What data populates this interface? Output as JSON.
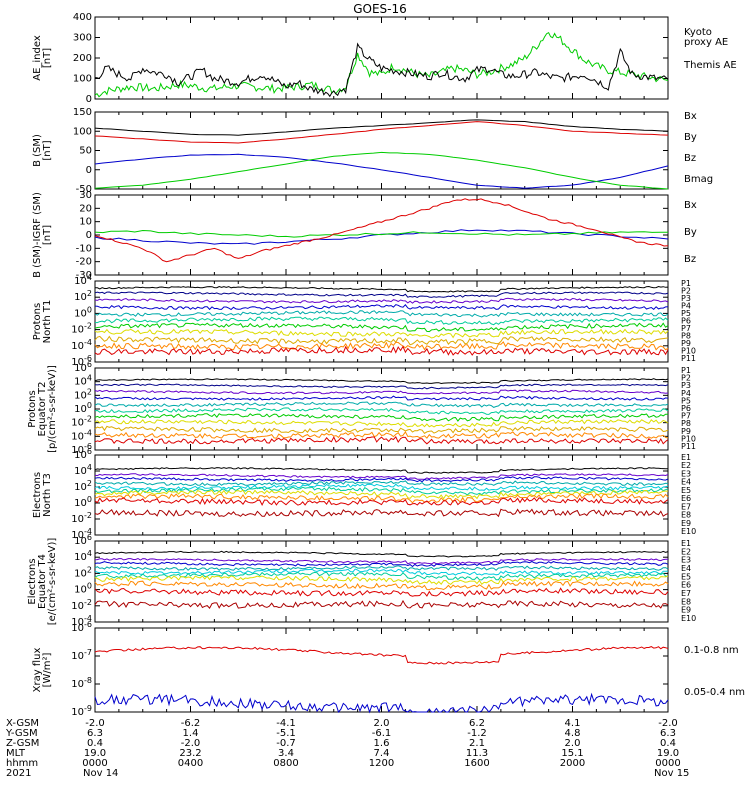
{
  "title": "GOES-16",
  "colors": {
    "black": "#000000",
    "red": "#dd0000",
    "green": "#00cc00",
    "blue": "#0000cc",
    "navy": "#000088",
    "purple": "#6600cc",
    "teal": "#00aaaa",
    "cyan": "#00ccdd",
    "sea": "#00cc99",
    "yellow": "#dddd00",
    "gold": "#ddaa00",
    "orange": "#ff8800",
    "darkred": "#aa0000"
  },
  "chart_data": [
    {
      "type": "line",
      "id": "ae",
      "ylabel": [
        "AE_index",
        "[nT]"
      ],
      "ylim": [
        0,
        400
      ],
      "yticks": [
        "0",
        "100",
        "200",
        "300",
        "400"
      ],
      "series": [
        {
          "name": "Kyoto proxy AE",
          "label_lines": [
            "Kyoto",
            "proxy AE"
          ],
          "color": "#00cc00",
          "x": [
            0,
            0.5,
            1,
            1.5,
            2,
            2.5,
            3,
            3.5,
            4,
            4.5,
            5,
            5.5,
            6,
            6.5,
            7,
            7.5,
            8,
            8.5,
            9,
            9.5,
            10,
            10.5,
            11,
            11.5,
            12,
            12.5,
            13,
            13.5,
            14,
            14.5,
            15,
            15.5,
            16,
            16.5,
            17,
            17.5,
            18,
            18.5,
            19,
            19.5,
            20,
            20.5,
            21,
            21.5,
            22,
            22.5,
            23,
            23.5,
            24
          ],
          "y": [
            20,
            40,
            50,
            60,
            55,
            50,
            60,
            70,
            65,
            55,
            50,
            60,
            65,
            60,
            55,
            50,
            55,
            60,
            70,
            60,
            40,
            60,
            220,
            130,
            120,
            160,
            140,
            120,
            110,
            130,
            150,
            140,
            120,
            130,
            150,
            170,
            200,
            260,
            330,
            290,
            240,
            190,
            160,
            140,
            130,
            120,
            110,
            100,
            90
          ]
        },
        {
          "name": "Themis AE",
          "label_lines": [
            "Themis AE"
          ],
          "color": "#000000",
          "x": [
            0,
            0.5,
            1,
            1.5,
            2,
            2.5,
            3,
            3.5,
            4,
            4.5,
            5,
            5.5,
            6,
            6.5,
            7,
            7.5,
            8,
            8.5,
            9,
            9.5,
            10,
            10.5,
            11,
            11.5,
            12,
            12.5,
            13,
            13.5,
            14,
            14.5,
            15,
            15.5,
            16,
            16.5,
            17,
            17.5,
            18,
            18.5,
            19,
            19.5,
            20,
            20.5,
            21,
            21.5,
            22,
            22.5,
            23,
            23.5,
            24
          ],
          "y": [
            100,
            150,
            120,
            100,
            150,
            130,
            120,
            80,
            110,
            140,
            100,
            90,
            80,
            100,
            120,
            90,
            60,
            80,
            50,
            40,
            30,
            50,
            250,
            190,
            150,
            140,
            130,
            120,
            110,
            130,
            110,
            100,
            140,
            150,
            120,
            110,
            120,
            130,
            110,
            100,
            110,
            120,
            90,
            60,
            230,
            120,
            110,
            100,
            95
          ]
        }
      ]
    },
    {
      "type": "line",
      "id": "bsm",
      "ylabel": [
        "B (SM)",
        "[nT]"
      ],
      "ylim": [
        -50,
        150
      ],
      "yticks": [
        "-50",
        "0",
        "50",
        "100",
        "150"
      ],
      "series": [
        {
          "name": "Bx",
          "color": "#0000cc",
          "x": [
            0,
            2,
            4,
            6,
            8,
            10,
            12,
            14,
            16,
            18,
            20,
            22,
            24
          ],
          "y": [
            15,
            28,
            38,
            40,
            32,
            18,
            0,
            -20,
            -40,
            -48,
            -40,
            -20,
            10
          ]
        },
        {
          "name": "By",
          "color": "#00cc00",
          "x": [
            0,
            2,
            4,
            6,
            8,
            10,
            12,
            14,
            16,
            18,
            20,
            22,
            24
          ],
          "y": [
            -48,
            -40,
            -25,
            -5,
            15,
            35,
            45,
            40,
            25,
            5,
            -20,
            -40,
            -50
          ]
        },
        {
          "name": "Bz",
          "color": "#dd0000",
          "x": [
            0,
            2,
            4,
            6,
            8,
            10,
            12,
            14,
            16,
            18,
            20,
            22,
            24
          ],
          "y": [
            88,
            80,
            72,
            70,
            80,
            92,
            105,
            115,
            125,
            115,
            100,
            95,
            90
          ]
        },
        {
          "name": "Bmag",
          "color": "#000000",
          "x": [
            0,
            2,
            4,
            6,
            8,
            10,
            12,
            14,
            16,
            18,
            20,
            22,
            24
          ],
          "y": [
            108,
            100,
            92,
            90,
            98,
            108,
            115,
            122,
            130,
            125,
            112,
            105,
            100
          ]
        }
      ]
    },
    {
      "type": "line",
      "id": "bigrf",
      "ylabel": [
        "B (SM)-IGRF (SM)",
        "[nT]"
      ],
      "ylim": [
        -30,
        30
      ],
      "yticks": [
        "-30",
        "-20",
        "-10",
        "0",
        "10",
        "20",
        "30"
      ],
      "series": [
        {
          "name": "Bx",
          "color": "#0000cc",
          "x": [
            0,
            2,
            4,
            6,
            8,
            10,
            12,
            14,
            16,
            18,
            20,
            22,
            24
          ],
          "y": [
            -2,
            -4,
            -6,
            -7,
            -5,
            -3,
            0,
            2,
            4,
            3,
            1,
            -1,
            -3
          ]
        },
        {
          "name": "By",
          "color": "#00cc00",
          "x": [
            0,
            2,
            4,
            6,
            8,
            10,
            12,
            14,
            16,
            18,
            20,
            22,
            24
          ],
          "y": [
            2,
            3,
            1,
            0,
            -1,
            0,
            1,
            2,
            1,
            0,
            1,
            2,
            2
          ]
        },
        {
          "name": "Bz",
          "color": "#dd0000",
          "x": [
            0,
            1,
            2,
            3,
            4,
            5,
            6,
            7,
            8,
            9,
            10,
            11,
            12,
            13,
            14,
            15,
            16,
            17,
            18,
            19,
            20,
            21,
            22,
            23,
            24
          ],
          "y": [
            0,
            -5,
            -10,
            -20,
            -15,
            -10,
            -18,
            -12,
            -8,
            -4,
            0,
            5,
            10,
            15,
            20,
            26,
            27,
            24,
            18,
            12,
            8,
            4,
            -2,
            -6,
            -8
          ]
        }
      ]
    },
    {
      "type": "line",
      "id": "protons_t1",
      "yscale": "log",
      "ylabel": [
        "Protons",
        "North T1"
      ],
      "ylim": [
        -6,
        4
      ],
      "yticks": [
        "10-6",
        "10-4",
        "10-2",
        "100",
        "102",
        "104"
      ],
      "channel_x": [
        0,
        1,
        2,
        3,
        4,
        5,
        6,
        7,
        8,
        9,
        10,
        11,
        12,
        13,
        14,
        15,
        16,
        17,
        18,
        19,
        20,
        21,
        22,
        23,
        24
      ],
      "series": [
        {
          "name": "P1",
          "color": "#000000",
          "base": 3.1
        },
        {
          "name": "P2",
          "color": "#000088",
          "base": 2.4
        },
        {
          "name": "P3",
          "color": "#6600cc",
          "base": 1.6
        },
        {
          "name": "P4",
          "color": "#0000cc",
          "base": 0.8
        },
        {
          "name": "P5",
          "color": "#00aaaa",
          "base": 0.0
        },
        {
          "name": "P6",
          "color": "#00cc99",
          "base": -0.8
        },
        {
          "name": "P7",
          "color": "#00cc00",
          "base": -1.6
        },
        {
          "name": "P8",
          "color": "#dddd00",
          "base": -2.4
        },
        {
          "name": "P9",
          "color": "#ddaa00",
          "base": -3.3
        },
        {
          "name": "P10",
          "color": "#ff8800",
          "base": -4.0
        },
        {
          "name": "P11",
          "color": "#dd0000",
          "base": -4.6
        }
      ]
    },
    {
      "type": "line",
      "id": "protons_t2",
      "yscale": "log",
      "ylabel": [
        "Protons",
        "Equator T2",
        "[p/(cm²-s-sr-keV)]"
      ],
      "ylim": [
        -6,
        6
      ],
      "yticks": [
        "10-6",
        "10-4",
        "10-2",
        "100",
        "102",
        "104",
        "106"
      ],
      "series": [
        {
          "name": "P1",
          "color": "#000000",
          "base": 4.2
        },
        {
          "name": "P2",
          "color": "#000088",
          "base": 3.4
        },
        {
          "name": "P3",
          "color": "#6600cc",
          "base": 2.5
        },
        {
          "name": "P4",
          "color": "#0000cc",
          "base": 1.6
        },
        {
          "name": "P5",
          "color": "#00aaaa",
          "base": 0.7
        },
        {
          "name": "P6",
          "color": "#00cc99",
          "base": -0.2
        },
        {
          "name": "P7",
          "color": "#00cc00",
          "base": -1.1
        },
        {
          "name": "P8",
          "color": "#dddd00",
          "base": -2.0
        },
        {
          "name": "P9",
          "color": "#ddaa00",
          "base": -3.0
        },
        {
          "name": "P10",
          "color": "#ff8800",
          "base": -3.8
        },
        {
          "name": "P11",
          "color": "#dd0000",
          "base": -4.6
        }
      ]
    },
    {
      "type": "line",
      "id": "electrons_t3",
      "yscale": "log",
      "ylabel": [
        "Electrons",
        "North T3"
      ],
      "ylim": [
        -4,
        6
      ],
      "yticks": [
        "10-4",
        "10-2",
        "100",
        "102",
        "104",
        "106"
      ],
      "series": [
        {
          "name": "E1",
          "color": "#000000",
          "base": 4.2
        },
        {
          "name": "E2",
          "color": "#6600cc",
          "base": 3.4
        },
        {
          "name": "E3",
          "color": "#0000cc",
          "base": 3.0
        },
        {
          "name": "E4",
          "color": "#00aaaa",
          "base": 2.5
        },
        {
          "name": "E5",
          "color": "#00ccdd",
          "base": 2.0
        },
        {
          "name": "E6",
          "color": "#00cc99",
          "base": 1.6
        },
        {
          "name": "E7",
          "color": "#dddd00",
          "base": 1.2
        },
        {
          "name": "E8",
          "color": "#ff8800",
          "base": 0.7
        },
        {
          "name": "E9",
          "color": "#dd0000",
          "base": 0.2
        },
        {
          "name": "E10",
          "color": "#aa0000",
          "base": -1.2
        }
      ]
    },
    {
      "type": "line",
      "id": "electrons_t4",
      "yscale": "log",
      "ylabel": [
        "Electrons",
        "Equator T4",
        "[e/(cm²-s-sr-keV)]"
      ],
      "ylim": [
        -4,
        6
      ],
      "yticks": [
        "10-4",
        "10-2",
        "100",
        "102",
        "104",
        "106"
      ],
      "series": [
        {
          "name": "E1",
          "color": "#000000",
          "base": 4.5
        },
        {
          "name": "E2",
          "color": "#6600cc",
          "base": 3.6
        },
        {
          "name": "E3",
          "color": "#0000cc",
          "base": 3.2
        },
        {
          "name": "E4",
          "color": "#00aaaa",
          "base": 2.7
        },
        {
          "name": "E5",
          "color": "#00ccdd",
          "base": 2.2
        },
        {
          "name": "E6",
          "color": "#00cc99",
          "base": 1.8
        },
        {
          "name": "E7",
          "color": "#dddd00",
          "base": 1.3
        },
        {
          "name": "E8",
          "color": "#ff8800",
          "base": 0.6
        },
        {
          "name": "E9",
          "color": "#dd0000",
          "base": -0.3
        },
        {
          "name": "E10",
          "color": "#aa0000",
          "base": -1.8
        }
      ]
    },
    {
      "type": "line",
      "id": "xray",
      "yscale": "log",
      "ylabel": [
        "Xray flux",
        "[W/m²]"
      ],
      "ylim": [
        -9,
        -6
      ],
      "yticks": [
        "10-9",
        "10-8",
        "10-7",
        "10-6"
      ],
      "series": [
        {
          "name": "0.1-0.8 nm",
          "color": "#dd0000",
          "base": -6.85
        },
        {
          "name": "0.05-0.4 nm",
          "color": "#0000cc",
          "base": -8.7
        }
      ]
    }
  ],
  "xaxis": {
    "rows": [
      {
        "label": "X-GSM",
        "values": [
          "-2.0",
          "-6.2",
          "-4.1",
          "2.0",
          "6.2",
          "4.1",
          "-2.0"
        ]
      },
      {
        "label": "Y-GSM",
        "values": [
          "6.3",
          "1.4",
          "-5.1",
          "-6.1",
          "-1.2",
          "4.8",
          "6.3"
        ]
      },
      {
        "label": "Z-GSM",
        "values": [
          "0.4",
          "-2.0",
          "-0.7",
          "1.6",
          "2.1",
          "2.0",
          "0.4"
        ]
      },
      {
        "label": "MLT",
        "values": [
          "19.0",
          "23.2",
          "3.4",
          "7.4",
          "11.3",
          "15.1",
          "19.0"
        ]
      },
      {
        "label": "hhmm",
        "values": [
          "0000",
          "0400",
          "0800",
          "1200",
          "1600",
          "2000",
          "0000"
        ]
      }
    ],
    "year": "2021",
    "date_start": "Nov 14",
    "date_end": "Nov 15"
  }
}
